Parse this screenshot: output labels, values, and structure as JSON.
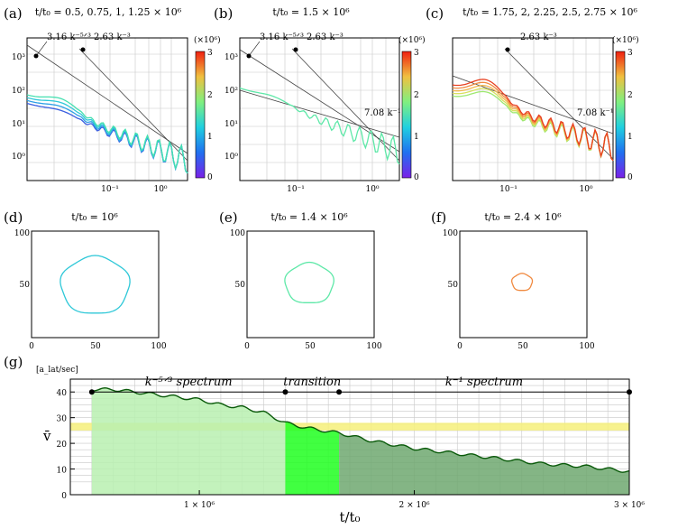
{
  "chart_data": [
    {
      "id": "a",
      "type": "line",
      "panel_label": "(a)",
      "title": "t/t₀ = 0.5, 0.75, 1, 1.25 × 10⁶",
      "xscale": "log",
      "yscale": "log",
      "x_tick_labels": [
        "10⁻¹",
        "10⁰"
      ],
      "y_tick_labels": [
        "10³",
        "10²",
        "10¹",
        "10⁰"
      ],
      "annotations": [
        "3.16 k⁻⁵ᐟ³",
        "2.63 k⁻³"
      ],
      "grid": true,
      "colorbar": {
        "label": "(×10⁶)",
        "ticks": [
          "3",
          "2",
          "1",
          "0"
        ],
        "range": [
          0,
          3
        ]
      },
      "series": [
        {
          "t": 0.5,
          "color": "#3b5fe0"
        },
        {
          "t": 0.75,
          "color": "#2d9fe6"
        },
        {
          "t": 1,
          "color": "#2fc8d8"
        },
        {
          "t": 1.25,
          "color": "#45e0b0"
        }
      ]
    },
    {
      "id": "b",
      "type": "line",
      "panel_label": "(b)",
      "title": "t/t₀ = 1.5 × 10⁶",
      "xscale": "log",
      "yscale": "log",
      "x_tick_labels": [
        "10⁻¹",
        "10⁰"
      ],
      "y_tick_labels": [
        "10³",
        "10²",
        "10¹",
        "10⁰"
      ],
      "annotations": [
        "3.16 k⁻⁵ᐟ³",
        "2.63 k⁻³",
        "7.08 k⁻¹"
      ],
      "grid": true,
      "colorbar": {
        "label": "(×10⁶)",
        "ticks": [
          "3",
          "2",
          "1",
          "0"
        ],
        "range": [
          0,
          3
        ]
      },
      "series": [
        {
          "t": 1.5,
          "color": "#5ee8a8"
        }
      ]
    },
    {
      "id": "c",
      "type": "line",
      "panel_label": "(c)",
      "title": "t/t₀ = 1.75, 2, 2.25, 2.5, 2.75 × 10⁶",
      "xscale": "log",
      "yscale": "log",
      "x_tick_labels": [
        "10⁻¹",
        "10⁰"
      ],
      "y_tick_labels": [],
      "annotations": [
        "2.63 k⁻³",
        "7.08 k⁻¹"
      ],
      "grid": true,
      "colorbar": {
        "label": "(×10⁶)",
        "ticks": [
          "3",
          "2",
          "1",
          "0"
        ],
        "range": [
          0,
          3
        ]
      },
      "series": [
        {
          "t": 1.75,
          "color": "#9ee870"
        },
        {
          "t": 2,
          "color": "#d8e060"
        },
        {
          "t": 2.25,
          "color": "#f0b850"
        },
        {
          "t": 2.5,
          "color": "#f08a40"
        },
        {
          "t": 2.75,
          "color": "#e84020"
        }
      ]
    },
    {
      "id": "d",
      "type": "scatter",
      "panel_label": "(d)",
      "title": "t/t₀ = 10⁶",
      "xlim": [
        0,
        100
      ],
      "ylim": [
        0,
        100
      ],
      "x_tick_labels": [
        "0",
        "50",
        "100"
      ],
      "y_tick_labels": [
        "100",
        "50"
      ],
      "loop": {
        "cx": 50,
        "cy": 49,
        "r": 27,
        "color": "#2fc8d8"
      }
    },
    {
      "id": "e",
      "type": "scatter",
      "panel_label": "(e)",
      "title": "t/t₀ = 1.4 × 10⁶",
      "xlim": [
        0,
        100
      ],
      "ylim": [
        0,
        100
      ],
      "x_tick_labels": [
        "0",
        "50",
        "100"
      ],
      "y_tick_labels": [
        "100",
        "50"
      ],
      "loop": {
        "cx": 49,
        "cy": 51,
        "r": 19,
        "color": "#5ee8a8"
      }
    },
    {
      "id": "f",
      "type": "scatter",
      "panel_label": "(f)",
      "title": "t/t₀ = 2.4 × 10⁶",
      "xlim": [
        0,
        100
      ],
      "ylim": [
        0,
        100
      ],
      "x_tick_labels": [
        "0",
        "50",
        "100"
      ],
      "y_tick_labels": [
        "100",
        "50"
      ],
      "loop": {
        "cx": 49,
        "cy": 52,
        "r": 8,
        "color": "#f08a40"
      }
    },
    {
      "id": "g",
      "type": "area",
      "panel_label": "(g)",
      "unit_label": "[a_lat/sec]",
      "ylabel": "v̄",
      "xlabel": "t/t₀",
      "xlim": [
        400000,
        3000000
      ],
      "ylim": [
        0,
        45
      ],
      "x_ticks": [
        1000000,
        2000000,
        3000000
      ],
      "x_tick_labels": [
        "1 × 10⁶",
        "2 × 10⁶",
        "3 × 10⁶"
      ],
      "y_ticks": [
        0,
        10,
        20,
        30,
        40
      ],
      "y_tick_labels": [
        "0",
        "10",
        "20",
        "30",
        "40"
      ],
      "highlight_band": [
        25,
        28
      ],
      "regimes": [
        {
          "label": "k⁻⁵ᐟ³  spectrum",
          "start": 500000,
          "end": 1400000,
          "color": "#b8f0b0"
        },
        {
          "label": "transition",
          "start": 1400000,
          "end": 1650000,
          "color": "#20ff20"
        },
        {
          "label": "k⁻¹  spectrum",
          "start": 1650000,
          "end": 3000000,
          "color": "#6fa870"
        }
      ],
      "markers_x": [
        500000,
        1400000,
        1650000,
        3000000
      ],
      "marker_y": 40,
      "x": [
        500000,
        600000,
        700000,
        800000,
        900000,
        1000000,
        1100000,
        1200000,
        1300000,
        1400000,
        1500000,
        1650000,
        1800000,
        2000000,
        2200000,
        2400000,
        2600000,
        2800000,
        3000000
      ],
      "values": [
        41,
        41,
        40,
        39,
        38,
        37,
        35,
        34,
        32,
        28,
        26,
        24,
        21,
        18,
        16,
        14,
        12,
        11,
        9
      ]
    }
  ]
}
